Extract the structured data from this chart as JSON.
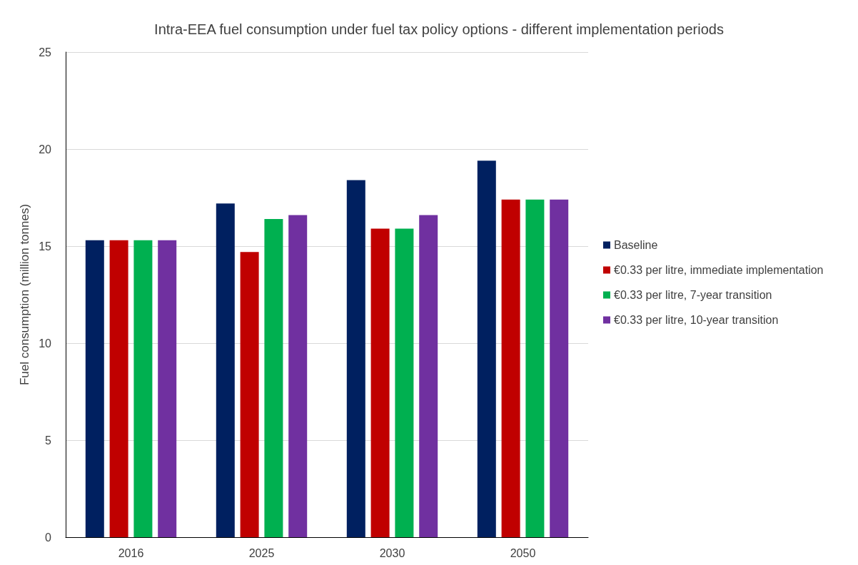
{
  "chart_data": {
    "type": "bar",
    "title": "Intra-EEA fuel consumption under fuel tax policy options - different implementation periods",
    "ylabel": "Fuel consumption (million tonnes)",
    "categories": [
      "2016",
      "2025",
      "2030",
      "2050"
    ],
    "series": [
      {
        "name": "Baseline",
        "color": "#002060",
        "values": [
          15.3,
          17.2,
          18.4,
          19.4
        ]
      },
      {
        "name": "€0.33 per litre, immediate implementation",
        "color": "#c00000",
        "values": [
          15.3,
          14.7,
          15.9,
          17.4
        ]
      },
      {
        "name": "€0.33 per litre, 7-year transition",
        "color": "#00b050",
        "values": [
          15.3,
          16.4,
          15.9,
          17.4
        ]
      },
      {
        "name": "€0.33 per litre, 10-year transition",
        "color": "#7030a0",
        "values": [
          15.3,
          16.6,
          16.6,
          17.4
        ]
      }
    ],
    "ylim": [
      0,
      25
    ],
    "yticks": [
      0,
      5,
      10,
      15,
      20,
      25
    ],
    "grid": "y",
    "legend": "right"
  }
}
